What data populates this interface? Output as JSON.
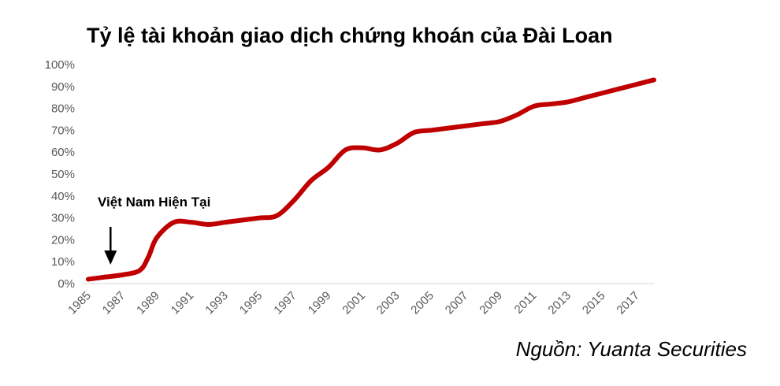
{
  "title": "Tỷ lệ tài khoản giao dịch chứng khoán của Đài Loan",
  "source_note": "Nguồn: Yuanta Securities",
  "line_color": "#c00000",
  "chart_data": {
    "type": "line",
    "title": "Tỷ lệ tài khoản giao dịch chứng khoán của Đài Loan",
    "xlabel": "",
    "ylabel": "",
    "y_tick_labels": [
      "0%",
      "10%",
      "20%",
      "30%",
      "40%",
      "50%",
      "60%",
      "70%",
      "80%",
      "90%",
      "100%"
    ],
    "x_tick_labels": [
      "1985",
      "1987",
      "1989",
      "1991",
      "1993",
      "1995",
      "1997",
      "1999",
      "2001",
      "2003",
      "2005",
      "2007",
      "2009",
      "2011",
      "2013",
      "2015",
      "2017"
    ],
    "xlim": [
      1985,
      2018
    ],
    "ylim": [
      0,
      100
    ],
    "grid": false,
    "legend": "none",
    "annotation": {
      "text": "Việt Nam Hiện Tại",
      "x": 1986.3,
      "y": 8
    },
    "series": [
      {
        "x": [
          1985,
          1986,
          1987,
          1988,
          1988.5,
          1989,
          1990,
          1991,
          1992,
          1993,
          1994,
          1995,
          1996,
          1997,
          1998,
          1999,
          2000,
          2001,
          2002,
          2003,
          2004,
          2005,
          2006,
          2007,
          2008,
          2009,
          2010,
          2011,
          2012,
          2013,
          2014,
          2015,
          2016,
          2017,
          2018
        ],
        "y": [
          2,
          3,
          4,
          6,
          12,
          21,
          28,
          28,
          27,
          28,
          29,
          30,
          31,
          38,
          47,
          53,
          61,
          62,
          61,
          64,
          69,
          70,
          71,
          72,
          73,
          74,
          77,
          81,
          82,
          83,
          85,
          87,
          89,
          91,
          93
        ]
      }
    ]
  }
}
